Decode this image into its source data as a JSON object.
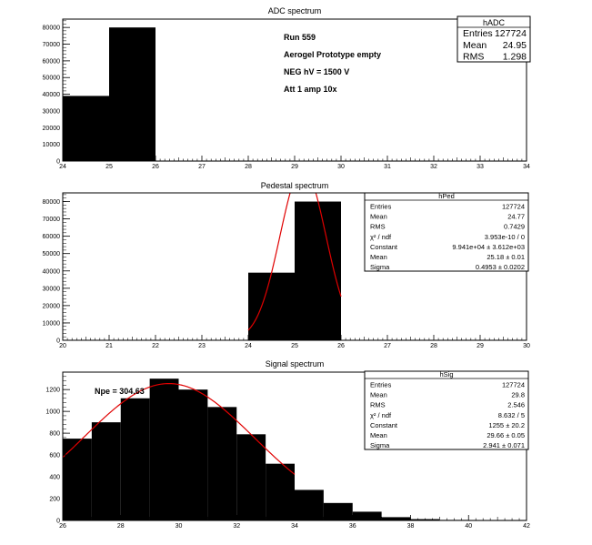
{
  "chart_data": [
    {
      "id": "adc",
      "type": "bar",
      "title": "ADC spectrum",
      "xlim": [
        24,
        34
      ],
      "ylim": [
        0,
        85000
      ],
      "x_ticks": [
        "24",
        "25",
        "26",
        "27",
        "28",
        "29",
        "30",
        "31",
        "32",
        "33",
        "34"
      ],
      "y_ticks": [
        "0",
        "10000",
        "20000",
        "30000",
        "40000",
        "50000",
        "60000",
        "70000",
        "80000"
      ],
      "bins": [
        {
          "x0": 24,
          "x1": 25,
          "y": 39000
        },
        {
          "x0": 25,
          "x1": 26,
          "y": 80000
        },
        {
          "x0": 26,
          "x1": 34,
          "y": 150
        }
      ],
      "annotations": [
        "Run  559",
        "Aerogel Prototype empty",
        "NEG hV = 1500 V",
        "Att 1 amp 10x"
      ],
      "stats": {
        "name": "hADC",
        "rows": [
          {
            "label": "Entries",
            "value": "127724"
          },
          {
            "label": "Mean",
            "value": "24.95"
          },
          {
            "label": "RMS",
            "value": "1.298"
          }
        ]
      }
    },
    {
      "id": "pedestal",
      "type": "bar",
      "title": "Pedestal spectrum",
      "xlim": [
        20,
        30
      ],
      "ylim": [
        0,
        85000
      ],
      "x_ticks": [
        "20",
        "21",
        "22",
        "23",
        "24",
        "25",
        "26",
        "27",
        "28",
        "29",
        "30"
      ],
      "y_ticks": [
        "0",
        "10000",
        "20000",
        "30000",
        "40000",
        "50000",
        "60000",
        "70000",
        "80000"
      ],
      "bins": [
        {
          "x0": 24,
          "x1": 25,
          "y": 39000
        },
        {
          "x0": 25,
          "x1": 26,
          "y": 80000
        },
        {
          "x0": 26,
          "x1": 30,
          "y": 150
        }
      ],
      "fit": {
        "constant": 99410,
        "mean": 25.18,
        "sigma": 0.4953,
        "xmin": 24,
        "xmax": 26
      },
      "stats": {
        "name": "hPed",
        "rows": [
          {
            "label": "Entries",
            "value": "127724"
          },
          {
            "label": "Mean",
            "value": "24.77"
          },
          {
            "label": "RMS",
            "value": "0.7429"
          },
          {
            "label": "χ² / ndf",
            "value": "3.953e-10 / 0"
          },
          {
            "label": "Constant",
            "value": "9.941e+04 ± 3.612e+03"
          },
          {
            "label": "Mean",
            "value": "25.18 ± 0.01"
          },
          {
            "label": "Sigma",
            "value": "0.4953 ± 0.0202"
          }
        ]
      }
    },
    {
      "id": "signal",
      "type": "bar",
      "title": "Signal spectrum",
      "xlim": [
        26,
        42
      ],
      "ylim": [
        0,
        1360
      ],
      "x_ticks": [
        "26",
        "28",
        "30",
        "32",
        "34",
        "36",
        "38",
        "40",
        "42"
      ],
      "x_tick_values": [
        26,
        28,
        30,
        32,
        34,
        36,
        38,
        40,
        42
      ],
      "y_ticks": [
        "0",
        "200",
        "400",
        "600",
        "800",
        "1000",
        "1200"
      ],
      "y_tick_values": [
        0,
        200,
        400,
        600,
        800,
        1000,
        1200
      ],
      "bins": [
        {
          "x0": 26,
          "x1": 27,
          "y": 750
        },
        {
          "x0": 27,
          "x1": 28,
          "y": 900
        },
        {
          "x0": 28,
          "x1": 29,
          "y": 1120
        },
        {
          "x0": 29,
          "x1": 30,
          "y": 1300
        },
        {
          "x0": 30,
          "x1": 31,
          "y": 1200
        },
        {
          "x0": 31,
          "x1": 32,
          "y": 1040
        },
        {
          "x0": 32,
          "x1": 33,
          "y": 790
        },
        {
          "x0": 33,
          "x1": 34,
          "y": 520
        },
        {
          "x0": 34,
          "x1": 35,
          "y": 280
        },
        {
          "x0": 35,
          "x1": 36,
          "y": 160
        },
        {
          "x0": 36,
          "x1": 37,
          "y": 80
        },
        {
          "x0": 37,
          "x1": 38,
          "y": 30
        },
        {
          "x0": 38,
          "x1": 39,
          "y": 12
        },
        {
          "x0": 39,
          "x1": 40,
          "y": 5
        },
        {
          "x0": 40,
          "x1": 42,
          "y": 2
        }
      ],
      "fit": {
        "constant": 1255,
        "mean": 29.66,
        "sigma": 2.941,
        "xmin": 26,
        "xmax": 34
      },
      "annotations": [
        "Npe = 304.63"
      ],
      "stats": {
        "name": "hSig",
        "rows": [
          {
            "label": "Entries",
            "value": "127724"
          },
          {
            "label": "Mean",
            "value": "29.8"
          },
          {
            "label": "RMS",
            "value": "2.546"
          },
          {
            "label": "χ² / ndf",
            "value": "8.632 / 5"
          },
          {
            "label": "Constant",
            "value": "1255 ± 20.2"
          },
          {
            "label": "Mean",
            "value": "29.66 ± 0.05"
          },
          {
            "label": "Sigma",
            "value": "2.941 ± 0.071"
          }
        ]
      }
    }
  ]
}
